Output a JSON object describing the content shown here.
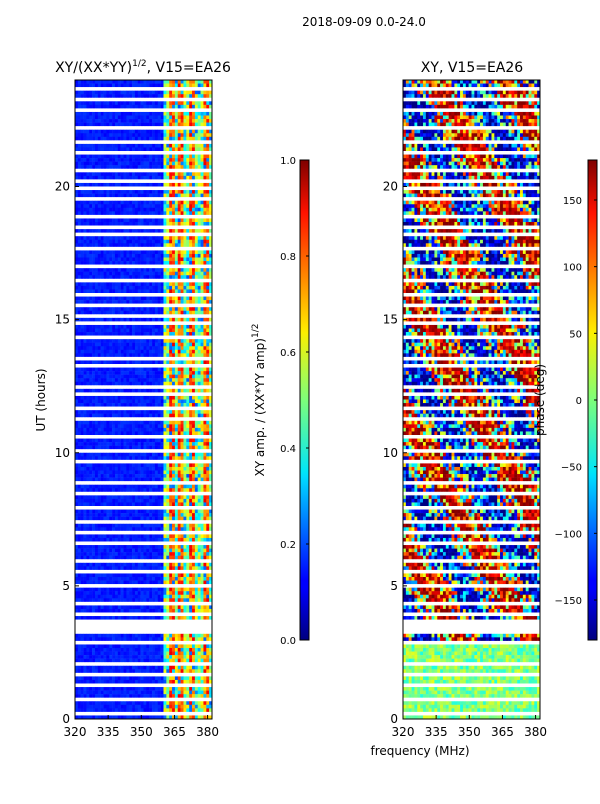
{
  "figure_title": "2018-09-09 0.0-24.0",
  "shared_xlabel": "frequency (MHz)",
  "colors": {
    "background": "#ffffff",
    "axes": "#000000",
    "gap": "#ffffff"
  },
  "chart_data": [
    {
      "type": "heatmap",
      "title": "XY/(XX*YY)",
      "title_suffix": ", V15=EA26",
      "title_superscript": "1/2",
      "xlabel": "",
      "ylabel": "UT (hours)",
      "x_ticks": [
        "320",
        "335",
        "350",
        "365",
        "380"
      ],
      "x_tick_values": [
        320,
        335,
        350,
        365,
        380
      ],
      "y_ticks": [
        "0",
        "5",
        "10",
        "15",
        "20"
      ],
      "y_tick_values": [
        0,
        5,
        10,
        15,
        20
      ],
      "xlim": [
        320,
        382
      ],
      "ylim": [
        0,
        24
      ],
      "colormap": "jet",
      "colorbar": {
        "label": "XY amp. / (XX*YY amp)",
        "label_superscript": "1/2",
        "range": [
          0.0,
          1.0
        ],
        "ticks": [
          "0.0",
          "0.2",
          "0.4",
          "0.6",
          "0.8",
          "1.0"
        ],
        "tick_values": [
          0.0,
          0.2,
          0.4,
          0.6,
          0.8,
          1.0
        ]
      },
      "pattern": {
        "low_band_MHz": [
          320,
          360
        ],
        "low_band_level": 0.12,
        "high_band_MHz": [
          360,
          382
        ],
        "high_band_level": 0.55,
        "bright_channels_MHz": [
          364,
          368,
          373,
          379
        ]
      },
      "data_gaps_hours": [
        [
          3.3,
          3.7
        ]
      ]
    },
    {
      "type": "heatmap",
      "title": "XY, V15=EA26",
      "xlabel": "frequency (MHz)",
      "ylabel": "",
      "x_ticks": [
        "320",
        "335",
        "350",
        "365",
        "380"
      ],
      "x_tick_values": [
        320,
        335,
        350,
        365,
        380
      ],
      "y_ticks": [
        "0",
        "5",
        "10",
        "15",
        "20"
      ],
      "y_tick_values": [
        0,
        5,
        10,
        15,
        20
      ],
      "xlim": [
        320,
        382
      ],
      "ylim": [
        0,
        24
      ],
      "colormap": "jet",
      "colorbar": {
        "label": "phase (deg)",
        "range": [
          -180,
          180
        ],
        "ticks": [
          "−150",
          "−100",
          "−50",
          "0",
          "50",
          "100",
          "150"
        ],
        "tick_values": [
          -150,
          -100,
          -50,
          0,
          50,
          100,
          150
        ]
      },
      "pattern": {
        "description_band_hours": [
          0,
          3
        ],
        "low_time_phase_deg": 15,
        "upper_time_phase": "wrapping across full range"
      },
      "data_gaps_hours": [
        [
          3.3,
          3.7
        ]
      ]
    }
  ]
}
